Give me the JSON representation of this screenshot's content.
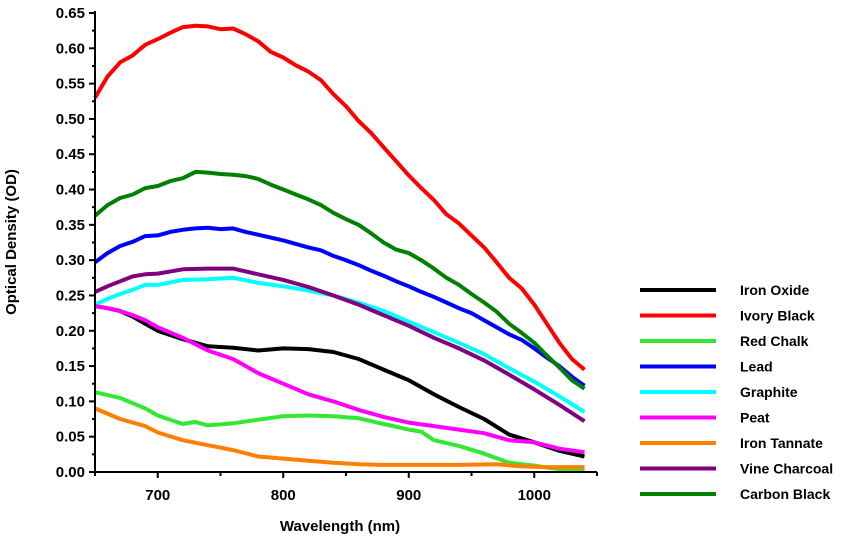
{
  "chart_data": {
    "type": "line",
    "title": "",
    "xlabel": "Wavelength (nm)",
    "ylabel": "Optical Density (OD)",
    "xlim": [
      650,
      1050
    ],
    "ylim": [
      0,
      0.65
    ],
    "xticks": [
      "700",
      "800",
      "900",
      "1000"
    ],
    "xtick_values": [
      700,
      800,
      900,
      1000
    ],
    "yticks": [
      "0.00",
      "0.05",
      "0.10",
      "0.15",
      "0.20",
      "0.25",
      "0.30",
      "0.35",
      "0.40",
      "0.45",
      "0.50",
      "0.55",
      "0.60",
      "0.65"
    ],
    "ytick_values": [
      0,
      0.05,
      0.1,
      0.15,
      0.2,
      0.25,
      0.3,
      0.35,
      0.4,
      0.45,
      0.5,
      0.55,
      0.6,
      0.65
    ],
    "grid": false,
    "legend_placement": "right",
    "series": [
      {
        "name": "Iron Oxide",
        "color": "#000000",
        "x": [
          650,
          660,
          670,
          680,
          690,
          700,
          720,
          740,
          760,
          780,
          800,
          820,
          840,
          860,
          880,
          900,
          920,
          940,
          960,
          980,
          1000,
          1020,
          1040
        ],
        "y": [
          0.235,
          0.232,
          0.228,
          0.22,
          0.21,
          0.2,
          0.188,
          0.178,
          0.176,
          0.172,
          0.175,
          0.174,
          0.17,
          0.16,
          0.145,
          0.13,
          0.11,
          0.092,
          0.075,
          0.053,
          0.042,
          0.03,
          0.022
        ]
      },
      {
        "name": "Ivory Black",
        "color": "#ff0000",
        "x": [
          650,
          660,
          670,
          680,
          690,
          700,
          710,
          720,
          730,
          740,
          750,
          760,
          770,
          780,
          790,
          800,
          810,
          820,
          830,
          840,
          850,
          860,
          870,
          880,
          890,
          900,
          910,
          920,
          930,
          940,
          950,
          960,
          970,
          980,
          990,
          1000,
          1010,
          1020,
          1030,
          1040
        ],
        "y": [
          0.53,
          0.56,
          0.58,
          0.59,
          0.605,
          0.613,
          0.622,
          0.63,
          0.632,
          0.631,
          0.627,
          0.628,
          0.62,
          0.61,
          0.595,
          0.587,
          0.576,
          0.567,
          0.555,
          0.535,
          0.518,
          0.497,
          0.48,
          0.46,
          0.44,
          0.42,
          0.402,
          0.385,
          0.365,
          0.352,
          0.335,
          0.318,
          0.297,
          0.275,
          0.26,
          0.237,
          0.21,
          0.183,
          0.16,
          0.145
        ]
      },
      {
        "name": "Red Chalk",
        "color": "#33e833",
        "x": [
          650,
          670,
          690,
          700,
          720,
          730,
          740,
          760,
          780,
          800,
          820,
          840,
          860,
          880,
          900,
          910,
          920,
          940,
          960,
          980,
          1000,
          1020,
          1040
        ],
        "y": [
          0.113,
          0.105,
          0.09,
          0.08,
          0.068,
          0.071,
          0.066,
          0.069,
          0.074,
          0.079,
          0.08,
          0.079,
          0.076,
          0.068,
          0.06,
          0.057,
          0.045,
          0.037,
          0.026,
          0.013,
          0.009,
          0.004,
          0.004
        ]
      },
      {
        "name": "Lead",
        "color": "#0000ff",
        "x": [
          650,
          660,
          670,
          680,
          690,
          700,
          710,
          720,
          730,
          740,
          750,
          760,
          770,
          780,
          790,
          800,
          810,
          820,
          830,
          840,
          850,
          860,
          870,
          880,
          890,
          900,
          910,
          920,
          930,
          940,
          950,
          960,
          970,
          980,
          990,
          1000,
          1010,
          1020,
          1030,
          1040
        ],
        "y": [
          0.297,
          0.31,
          0.32,
          0.326,
          0.334,
          0.335,
          0.34,
          0.343,
          0.345,
          0.346,
          0.344,
          0.345,
          0.34,
          0.336,
          0.332,
          0.328,
          0.323,
          0.318,
          0.314,
          0.306,
          0.3,
          0.293,
          0.285,
          0.278,
          0.27,
          0.263,
          0.255,
          0.248,
          0.24,
          0.232,
          0.225,
          0.215,
          0.205,
          0.195,
          0.187,
          0.175,
          0.162,
          0.15,
          0.135,
          0.122
        ]
      },
      {
        "name": "Graphite",
        "color": "#00ffff",
        "x": [
          650,
          660,
          670,
          680,
          690,
          700,
          720,
          740,
          760,
          780,
          800,
          820,
          840,
          860,
          880,
          900,
          920,
          940,
          960,
          980,
          1000,
          1020,
          1040
        ],
        "y": [
          0.237,
          0.245,
          0.252,
          0.258,
          0.265,
          0.265,
          0.272,
          0.273,
          0.275,
          0.268,
          0.263,
          0.257,
          0.25,
          0.24,
          0.228,
          0.213,
          0.198,
          0.183,
          0.167,
          0.147,
          0.128,
          0.107,
          0.085
        ]
      },
      {
        "name": "Peat",
        "color": "#ff00ff",
        "x": [
          650,
          660,
          670,
          680,
          690,
          700,
          720,
          740,
          760,
          780,
          800,
          820,
          840,
          860,
          880,
          900,
          920,
          940,
          960,
          980,
          1000,
          1020,
          1040
        ],
        "y": [
          0.235,
          0.232,
          0.228,
          0.222,
          0.215,
          0.205,
          0.19,
          0.172,
          0.16,
          0.14,
          0.125,
          0.11,
          0.1,
          0.088,
          0.078,
          0.07,
          0.065,
          0.06,
          0.055,
          0.045,
          0.042,
          0.033,
          0.028
        ]
      },
      {
        "name": "Iron Tannate",
        "color": "#ff8000",
        "x": [
          650,
          670,
          690,
          700,
          720,
          740,
          760,
          780,
          800,
          820,
          840,
          860,
          880,
          900,
          940,
          970,
          990,
          1010,
          1040
        ],
        "y": [
          0.09,
          0.075,
          0.065,
          0.056,
          0.045,
          0.038,
          0.031,
          0.022,
          0.019,
          0.016,
          0.013,
          0.011,
          0.01,
          0.01,
          0.01,
          0.011,
          0.008,
          0.007,
          0.007
        ]
      },
      {
        "name": "Vine Charcoal",
        "color": "#800080",
        "x": [
          650,
          660,
          670,
          680,
          690,
          700,
          720,
          740,
          760,
          780,
          800,
          820,
          840,
          860,
          880,
          900,
          920,
          940,
          960,
          980,
          1000,
          1020,
          1040
        ],
        "y": [
          0.255,
          0.263,
          0.27,
          0.277,
          0.28,
          0.281,
          0.287,
          0.288,
          0.288,
          0.28,
          0.272,
          0.262,
          0.25,
          0.237,
          0.222,
          0.207,
          0.19,
          0.175,
          0.158,
          0.138,
          0.117,
          0.095,
          0.072
        ]
      },
      {
        "name": "Carbon Black",
        "color": "#008000",
        "x": [
          650,
          660,
          670,
          680,
          690,
          700,
          710,
          720,
          730,
          740,
          750,
          760,
          770,
          780,
          790,
          800,
          810,
          820,
          830,
          840,
          850,
          860,
          870,
          880,
          890,
          900,
          910,
          920,
          930,
          940,
          950,
          960,
          970,
          980,
          990,
          1000,
          1010,
          1020,
          1030,
          1040
        ],
        "y": [
          0.363,
          0.378,
          0.388,
          0.393,
          0.402,
          0.405,
          0.412,
          0.416,
          0.425,
          0.424,
          0.422,
          0.421,
          0.419,
          0.415,
          0.407,
          0.4,
          0.393,
          0.386,
          0.378,
          0.367,
          0.358,
          0.35,
          0.338,
          0.325,
          0.315,
          0.31,
          0.3,
          0.288,
          0.275,
          0.265,
          0.252,
          0.24,
          0.227,
          0.21,
          0.197,
          0.183,
          0.165,
          0.148,
          0.13,
          0.118
        ]
      }
    ]
  }
}
